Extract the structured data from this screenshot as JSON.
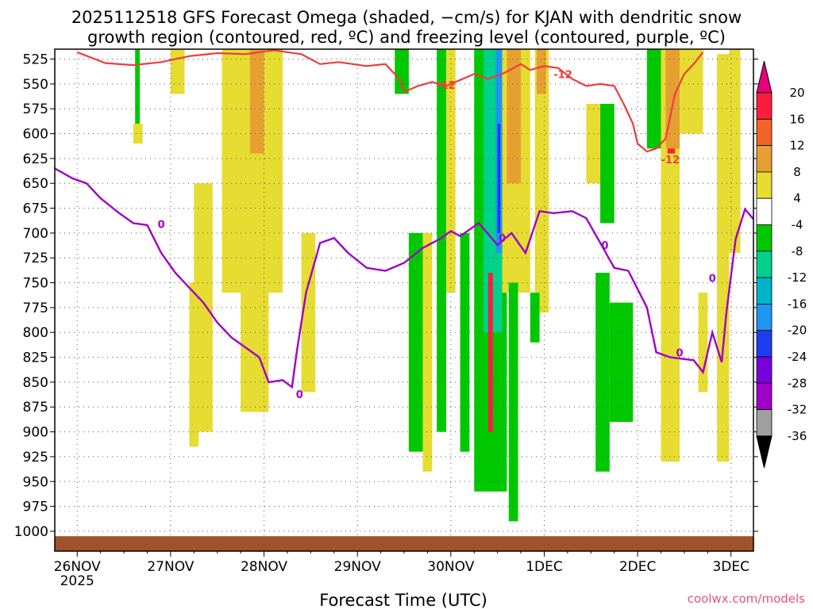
{
  "chart_data": {
    "type": "time-height",
    "title": {
      "line1": "2025112518 GFS Forecast Omega (shaded, −cm/s) for KJAN with dendritic snow",
      "line2": "growth region (contoured, red, ºC) and freezing level (contoured, purple, ºC)"
    },
    "xlabel": "Forecast Time (UTC)",
    "watermark": "coolwx.com/models",
    "x_ticks": [
      "26NOV",
      "27NOV",
      "28NOV",
      "29NOV",
      "30NOV",
      "1DEC",
      "2DEC",
      "3DEC"
    ],
    "x_tick_year": "2025",
    "x_range_days": [
      25.76,
      33.24
    ],
    "y_ticks": [
      525,
      550,
      575,
      600,
      625,
      650,
      675,
      700,
      725,
      750,
      775,
      800,
      825,
      850,
      875,
      900,
      925,
      950,
      975,
      1000
    ],
    "y_range_hpa": [
      515,
      1020
    ],
    "colorbar": {
      "labels": [
        "20",
        "16",
        "12",
        "8",
        "4",
        "-4",
        "-8",
        "-12",
        "-16",
        "-20",
        "-24",
        "-28",
        "-32",
        "-36"
      ],
      "colors": [
        "#fa1e3c",
        "#f06428",
        "#e6a032",
        "#e6dc32",
        "#ffffff",
        "#00c800",
        "#00d28c",
        "#00b4c8",
        "#1e96f0",
        "#1e3cf0",
        "#7800dc",
        "#a000c8",
        "#a0a0a0"
      ],
      "top_arrow": "#e6007c",
      "bottom_arrow": "#000000"
    },
    "colors": {
      "dgz": "#f03c3c",
      "freezing": "#a000c8",
      "ground": "#a0522d"
    },
    "dgz_contour": {
      "label": "-12",
      "points": [
        [
          26.0,
          518
        ],
        [
          26.3,
          529
        ],
        [
          26.6,
          531
        ],
        [
          26.9,
          528
        ],
        [
          27.2,
          522
        ],
        [
          27.5,
          519
        ],
        [
          27.8,
          520
        ],
        [
          28.1,
          516
        ],
        [
          28.4,
          520
        ],
        [
          28.6,
          530
        ],
        [
          28.8,
          528
        ],
        [
          29.1,
          532
        ],
        [
          29.3,
          530
        ],
        [
          29.45,
          545
        ],
        [
          29.5,
          558
        ],
        [
          29.65,
          552
        ],
        [
          29.8,
          548
        ],
        [
          29.95,
          552
        ],
        [
          30.1,
          546
        ],
        [
          30.25,
          540
        ],
        [
          30.4,
          545
        ],
        [
          30.55,
          540
        ],
        [
          30.75,
          530
        ],
        [
          30.85,
          536
        ],
        [
          31.0,
          532
        ],
        [
          31.15,
          534
        ],
        [
          31.3,
          545
        ],
        [
          31.45,
          552
        ],
        [
          31.6,
          550
        ],
        [
          31.75,
          552
        ],
        [
          31.85,
          570
        ],
        [
          31.95,
          590
        ],
        [
          32.0,
          610
        ],
        [
          32.1,
          618
        ],
        [
          32.2,
          615
        ],
        [
          32.3,
          605
        ],
        [
          32.4,
          560
        ],
        [
          32.5,
          540
        ],
        [
          32.6,
          530
        ],
        [
          32.7,
          518
        ]
      ]
    },
    "freezing_contour": {
      "label": "0",
      "points": [
        [
          25.76,
          635
        ],
        [
          25.95,
          645
        ],
        [
          26.1,
          650
        ],
        [
          26.25,
          665
        ],
        [
          26.45,
          680
        ],
        [
          26.6,
          690
        ],
        [
          26.75,
          692
        ],
        [
          26.9,
          720
        ],
        [
          27.05,
          740
        ],
        [
          27.2,
          755
        ],
        [
          27.35,
          770
        ],
        [
          27.5,
          790
        ],
        [
          27.65,
          805
        ],
        [
          27.8,
          815
        ],
        [
          27.95,
          825
        ],
        [
          28.05,
          850
        ],
        [
          28.2,
          848
        ],
        [
          28.3,
          855
        ],
        [
          28.35,
          820
        ],
        [
          28.45,
          760
        ],
        [
          28.6,
          710
        ],
        [
          28.75,
          705
        ],
        [
          28.9,
          720
        ],
        [
          29.1,
          735
        ],
        [
          29.3,
          738
        ],
        [
          29.5,
          730
        ],
        [
          29.7,
          715
        ],
        [
          29.9,
          705
        ],
        [
          30.0,
          698
        ],
        [
          30.1,
          703
        ],
        [
          30.3,
          690
        ],
        [
          30.5,
          712
        ],
        [
          30.65,
          700
        ],
        [
          30.8,
          720
        ],
        [
          30.95,
          678
        ],
        [
          31.1,
          680
        ],
        [
          31.3,
          678
        ],
        [
          31.45,
          685
        ],
        [
          31.6,
          710
        ],
        [
          31.75,
          735
        ],
        [
          31.9,
          738
        ],
        [
          32.1,
          775
        ],
        [
          32.2,
          820
        ],
        [
          32.35,
          825
        ],
        [
          32.6,
          828
        ],
        [
          32.7,
          840
        ],
        [
          32.8,
          800
        ],
        [
          32.9,
          830
        ],
        [
          32.95,
          780
        ],
        [
          33.05,
          706
        ],
        [
          33.15,
          676
        ],
        [
          33.24,
          686
        ]
      ]
    },
    "omega_patches": [
      {
        "x": [
          26.62,
          26.67
        ],
        "p": [
          515,
          590
        ],
        "c": "#00c800"
      },
      {
        "x": [
          26.6,
          26.7
        ],
        "p": [
          590,
          610
        ],
        "c": "#e6dc32"
      },
      {
        "x": [
          27.0,
          27.15
        ],
        "p": [
          515,
          560
        ],
        "c": "#e6dc32"
      },
      {
        "x": [
          27.25,
          27.45
        ],
        "p": [
          650,
          900
        ],
        "c": "#e6dc32"
      },
      {
        "x": [
          27.2,
          27.3
        ],
        "p": [
          750,
          915
        ],
        "c": "#e6dc32"
      },
      {
        "x": [
          27.55,
          28.2
        ],
        "p": [
          515,
          760
        ],
        "c": "#e6dc32"
      },
      {
        "x": [
          27.75,
          28.05
        ],
        "p": [
          515,
          880
        ],
        "c": "#e6dc32"
      },
      {
        "x": [
          27.85,
          28.0
        ],
        "p": [
          515,
          620
        ],
        "c": "#e6a032"
      },
      {
        "x": [
          28.4,
          28.55
        ],
        "p": [
          700,
          860
        ],
        "c": "#e6dc32"
      },
      {
        "x": [
          29.4,
          29.55
        ],
        "p": [
          515,
          560
        ],
        "c": "#00c800"
      },
      {
        "x": [
          29.55,
          29.7
        ],
        "p": [
          700,
          920
        ],
        "c": "#00c800"
      },
      {
        "x": [
          29.7,
          29.8
        ],
        "p": [
          700,
          940
        ],
        "c": "#e6dc32"
      },
      {
        "x": [
          29.85,
          29.95
        ],
        "p": [
          515,
          900
        ],
        "c": "#00c800"
      },
      {
        "x": [
          29.95,
          30.05
        ],
        "p": [
          515,
          760
        ],
        "c": "#e6dc32"
      },
      {
        "x": [
          30.1,
          30.2
        ],
        "p": [
          700,
          920
        ],
        "c": "#00c800"
      },
      {
        "x": [
          30.25,
          30.6
        ],
        "p": [
          515,
          960
        ],
        "c": "#00c800"
      },
      {
        "x": [
          30.35,
          30.55
        ],
        "p": [
          515,
          800
        ],
        "c": "#00d28c"
      },
      {
        "x": [
          30.48,
          30.55
        ],
        "p": [
          515,
          720
        ],
        "c": "#1e96f0"
      },
      {
        "x": [
          30.5,
          30.53
        ],
        "p": [
          590,
          700
        ],
        "c": "#1e3cf0"
      },
      {
        "x": [
          30.4,
          30.45
        ],
        "p": [
          740,
          900
        ],
        "c": "#fa1e3c"
      },
      {
        "x": [
          30.55,
          30.85
        ],
        "p": [
          515,
          760
        ],
        "c": "#e6dc32"
      },
      {
        "x": [
          30.6,
          30.75
        ],
        "p": [
          515,
          650
        ],
        "c": "#e6a032"
      },
      {
        "x": [
          30.62,
          30.72
        ],
        "p": [
          750,
          990
        ],
        "c": "#00c800"
      },
      {
        "x": [
          30.9,
          31.05
        ],
        "p": [
          515,
          780
        ],
        "c": "#e6dc32"
      },
      {
        "x": [
          30.92,
          31.02
        ],
        "p": [
          515,
          560
        ],
        "c": "#e6a032"
      },
      {
        "x": [
          30.85,
          30.95
        ],
        "p": [
          760,
          810
        ],
        "c": "#00c800"
      },
      {
        "x": [
          31.45,
          31.6
        ],
        "p": [
          570,
          650
        ],
        "c": "#e6dc32"
      },
      {
        "x": [
          31.6,
          31.75
        ],
        "p": [
          570,
          690
        ],
        "c": "#00c800"
      },
      {
        "x": [
          31.55,
          31.7
        ],
        "p": [
          740,
          940
        ],
        "c": "#00c800"
      },
      {
        "x": [
          31.7,
          31.95
        ],
        "p": [
          770,
          890
        ],
        "c": "#00c800"
      },
      {
        "x": [
          32.1,
          32.25
        ],
        "p": [
          515,
          615
        ],
        "c": "#00c800"
      },
      {
        "x": [
          32.25,
          32.45
        ],
        "p": [
          515,
          930
        ],
        "c": "#e6dc32"
      },
      {
        "x": [
          32.32,
          32.4
        ],
        "p": [
          515,
          620
        ],
        "c": "#fa1e3c"
      },
      {
        "x": [
          32.3,
          32.45
        ],
        "p": [
          515,
          615
        ],
        "c": "#e6a032"
      },
      {
        "x": [
          32.45,
          32.7
        ],
        "p": [
          515,
          600
        ],
        "c": "#e6dc32"
      },
      {
        "x": [
          32.65,
          32.75
        ],
        "p": [
          760,
          860
        ],
        "c": "#e6dc32"
      },
      {
        "x": [
          32.85,
          32.98
        ],
        "p": [
          520,
          930
        ],
        "c": "#e6dc32"
      },
      {
        "x": [
          32.98,
          33.1
        ],
        "p": [
          515,
          720
        ],
        "c": "#e6dc32"
      }
    ],
    "ground_top_hpa": 1005
  }
}
